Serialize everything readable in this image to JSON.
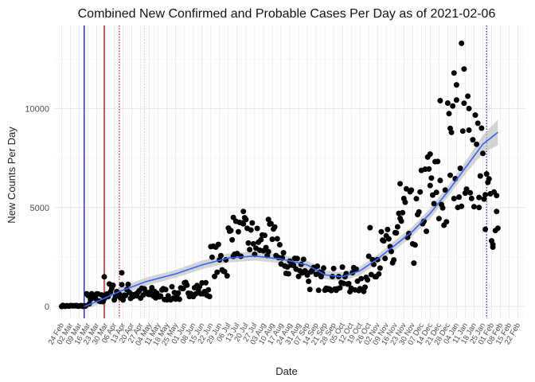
{
  "chart_data": {
    "type": "scatter",
    "title": "Combined New Confirmed and Probable Cases Per Day as of 2021-02-06",
    "xlabel": "Date",
    "ylabel": "New Counts Per Day",
    "x_start": "2020-02-24",
    "x_end": "2021-02-22",
    "xlim": [
      "2020-02-18",
      "2021-02-28"
    ],
    "ylim": [
      -600,
      14200
    ],
    "y_ticks": [
      0,
      5000,
      10000
    ],
    "x_tick_labels": [
      "24 Feb",
      "02 Mar",
      "09 Mar",
      "16 Mar",
      "23 Mar",
      "30 Mar",
      "06 Apr",
      "13 Apr",
      "20 Apr",
      "27 Apr",
      "04 May",
      "11 May",
      "18 May",
      "25 May",
      "01 Jun",
      "08 Jun",
      "15 Jun",
      "22 Jun",
      "29 Jun",
      "06 Jul",
      "13 Jul",
      "20 Jul",
      "27 Jul",
      "03 Aug",
      "10 Aug",
      "17 Aug",
      "24 Aug",
      "31 Aug",
      "07 Sep",
      "14 Sep",
      "21 Sep",
      "28 Sep",
      "05 Oct",
      "12 Oct",
      "19 Oct",
      "26 Oct",
      "02 Nov",
      "09 Nov",
      "16 Nov",
      "23 Nov",
      "30 Nov",
      "07 Dec",
      "14 Dec",
      "21 Dec",
      "28 Dec",
      "04 Jan",
      "11 Jan",
      "18 Jan",
      "25 Jan",
      "01 Feb",
      "08 Feb",
      "15 Feb",
      "22 Feb"
    ],
    "grid": true,
    "reference_lines": [
      {
        "date": "2020-03-13",
        "color": "#0000cc",
        "style": "solid"
      },
      {
        "date": "2020-03-29",
        "color": "#8b0000",
        "style": "solid"
      },
      {
        "date": "2020-04-10",
        "color": "#cc0000",
        "style": "dotted"
      },
      {
        "date": "2020-04-30",
        "color": "#ffb6b6",
        "style": "dotted"
      },
      {
        "date": "2021-01-28",
        "color": "#0000cc",
        "style": "dotted"
      }
    ],
    "smooth_series": {
      "color": "#3366ff",
      "band_color": "#bdbdbd",
      "points": [
        {
          "date": "2020-03-13",
          "y": 0,
          "lo": -150,
          "hi": 150
        },
        {
          "date": "2020-03-25",
          "y": 300,
          "lo": 120,
          "hi": 480
        },
        {
          "date": "2020-04-10",
          "y": 750,
          "lo": 550,
          "hi": 950
        },
        {
          "date": "2020-05-01",
          "y": 1250,
          "lo": 1050,
          "hi": 1450
        },
        {
          "date": "2020-05-25",
          "y": 1650,
          "lo": 1450,
          "hi": 1850
        },
        {
          "date": "2020-06-15",
          "y": 2100,
          "lo": 1880,
          "hi": 2320
        },
        {
          "date": "2020-07-06",
          "y": 2450,
          "lo": 2220,
          "hi": 2680
        },
        {
          "date": "2020-07-27",
          "y": 2550,
          "lo": 2320,
          "hi": 2780
        },
        {
          "date": "2020-08-17",
          "y": 2400,
          "lo": 2180,
          "hi": 2620
        },
        {
          "date": "2020-09-07",
          "y": 2100,
          "lo": 1880,
          "hi": 2320
        },
        {
          "date": "2020-09-21",
          "y": 1600,
          "lo": 1380,
          "hi": 1820
        },
        {
          "date": "2020-10-05",
          "y": 1500,
          "lo": 1280,
          "hi": 1720
        },
        {
          "date": "2020-10-19",
          "y": 1800,
          "lo": 1580,
          "hi": 2020
        },
        {
          "date": "2020-11-02",
          "y": 2400,
          "lo": 2180,
          "hi": 2620
        },
        {
          "date": "2020-11-16",
          "y": 3100,
          "lo": 2860,
          "hi": 3340
        },
        {
          "date": "2020-11-30",
          "y": 3800,
          "lo": 3560,
          "hi": 4040
        },
        {
          "date": "2020-12-14",
          "y": 4700,
          "lo": 4440,
          "hi": 4960
        },
        {
          "date": "2020-12-28",
          "y": 5800,
          "lo": 5520,
          "hi": 6080
        },
        {
          "date": "2021-01-11",
          "y": 7000,
          "lo": 6680,
          "hi": 7320
        },
        {
          "date": "2021-01-25",
          "y": 8200,
          "lo": 7750,
          "hi": 8650
        },
        {
          "date": "2021-02-06",
          "y": 8800,
          "lo": 8150,
          "hi": 9450
        }
      ]
    },
    "point_groups": [
      {
        "start": "2020-02-24",
        "end": "2020-03-14",
        "lo": 0,
        "hi": 60
      },
      {
        "start": "2020-03-15",
        "end": "2020-03-28",
        "lo": 80,
        "hi": 700
      },
      {
        "start": "2020-03-29",
        "end": "2020-04-26",
        "lo": 300,
        "hi": 1200
      },
      {
        "start": "2020-04-27",
        "end": "2020-05-31",
        "lo": 300,
        "hi": 1000
      },
      {
        "start": "2020-06-01",
        "end": "2020-06-21",
        "lo": 500,
        "hi": 1300
      },
      {
        "start": "2020-06-22",
        "end": "2020-07-05",
        "lo": 1500,
        "hi": 3200
      },
      {
        "start": "2020-07-06",
        "end": "2020-07-26",
        "lo": 2500,
        "hi": 4500
      },
      {
        "start": "2020-07-27",
        "end": "2020-08-16",
        "lo": 2300,
        "hi": 4200
      },
      {
        "start": "2020-08-17",
        "end": "2020-09-06",
        "lo": 1500,
        "hi": 2800
      },
      {
        "start": "2020-09-07",
        "end": "2020-09-27",
        "lo": 800,
        "hi": 2100
      },
      {
        "start": "2020-09-28",
        "end": "2020-10-25",
        "lo": 700,
        "hi": 2000
      },
      {
        "start": "2020-10-26",
        "end": "2020-11-15",
        "lo": 1500,
        "hi": 4000
      },
      {
        "start": "2020-11-16",
        "end": "2020-12-06",
        "lo": 2000,
        "hi": 6000
      },
      {
        "start": "2020-12-07",
        "end": "2020-12-27",
        "lo": 3500,
        "hi": 8000
      },
      {
        "start": "2020-12-28",
        "end": "2021-01-24",
        "lo": 5000,
        "hi": 11000
      },
      {
        "start": "2021-01-25",
        "end": "2021-02-06",
        "lo": 3000,
        "hi": 8000
      }
    ],
    "highlight_points": [
      {
        "date": "2020-03-29",
        "y": 1500
      },
      {
        "date": "2020-04-12",
        "y": 1700
      },
      {
        "date": "2020-07-10",
        "y": 4500
      },
      {
        "date": "2020-07-18",
        "y": 4800
      },
      {
        "date": "2020-08-07",
        "y": 4400
      },
      {
        "date": "2020-11-20",
        "y": 6200
      },
      {
        "date": "2020-12-14",
        "y": 7700
      },
      {
        "date": "2020-12-22",
        "y": 10400
      },
      {
        "date": "2020-12-30",
        "y": 9000
      },
      {
        "date": "2021-01-02",
        "y": 11800
      },
      {
        "date": "2021-01-04",
        "y": 11200
      },
      {
        "date": "2021-01-08",
        "y": 13300
      },
      {
        "date": "2021-01-10",
        "y": 12000
      },
      {
        "date": "2021-01-14",
        "y": 10000
      },
      {
        "date": "2021-01-22",
        "y": 5000
      },
      {
        "date": "2021-01-27",
        "y": 3900
      },
      {
        "date": "2021-02-02",
        "y": 3000
      },
      {
        "date": "2021-02-05",
        "y": 4800
      }
    ],
    "point_color": "#000000",
    "seed": 7
  }
}
